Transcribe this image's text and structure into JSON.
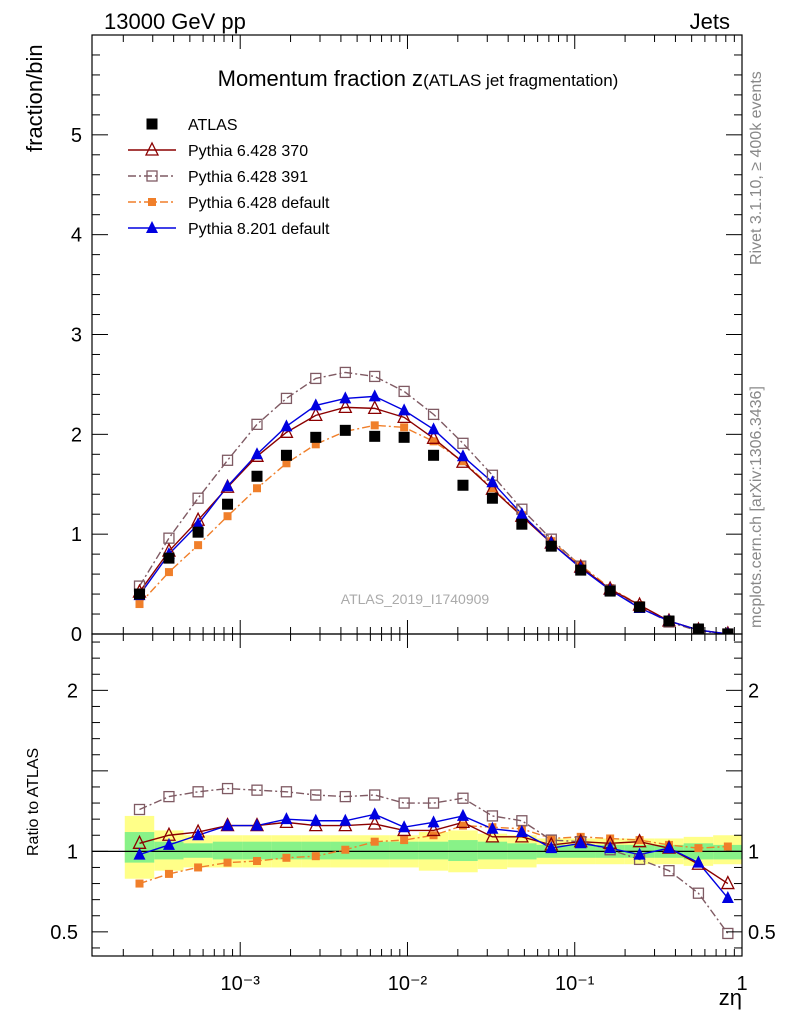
{
  "header": {
    "left": "13000 GeV pp",
    "right": "Jets"
  },
  "side_labels": {
    "rivet": "Rivet 3.1.10, ≥ 400k events",
    "mcplots": "mcplots.cern.ch [arXiv:1306.3436]"
  },
  "chart_data": {
    "type": "scatter",
    "title_main": "Momentum fraction z",
    "title_sub": "(ATLAS jet fragmentation)",
    "watermark": "ATLAS_2019_I1740909",
    "xlabel": "zη",
    "ylabel_top": "fraction/bin",
    "ylabel_bottom": "Ratio to ATLAS",
    "x_scale": "log",
    "xlim": [
      0.00013,
      1.0
    ],
    "x_tick_labels": [
      "10⁻³",
      "10⁻²",
      "10⁻¹",
      "1"
    ],
    "top": {
      "ylim": [
        0,
        6
      ],
      "y_ticks": [
        0,
        1,
        2,
        3,
        4,
        5
      ],
      "legend_position": "top-left"
    },
    "bottom": {
      "ylim": [
        0.35,
        2.35
      ],
      "y_ticks": [
        0.5,
        1,
        2
      ],
      "reference_line": 1.0
    },
    "x": [
      0.00025,
      0.000375,
      0.00056,
      0.00084,
      0.00126,
      0.00189,
      0.00283,
      0.00425,
      0.00637,
      0.00955,
      0.01432,
      0.02147,
      0.0322,
      0.04829,
      0.07241,
      0.1086,
      0.1628,
      0.2441,
      0.366,
      0.549,
      0.823
    ],
    "series": [
      {
        "name": "ATLAS",
        "color": "#000000",
        "marker": "square-filled",
        "line": "none",
        "values": [
          0.4,
          0.76,
          1.02,
          1.3,
          1.58,
          1.79,
          1.97,
          2.04,
          1.98,
          1.97,
          1.79,
          1.49,
          1.36,
          1.1,
          0.88,
          0.64,
          0.43,
          0.27,
          0.13,
          0.05,
          0.0
        ]
      },
      {
        "name": "Pythia 6.428 370",
        "color": "#8b0000",
        "marker": "triangle-open",
        "line": "solid",
        "values": [
          0.42,
          0.83,
          1.14,
          1.47,
          1.78,
          2.02,
          2.19,
          2.27,
          2.26,
          2.17,
          1.96,
          1.72,
          1.45,
          1.18,
          0.91,
          0.67,
          0.45,
          0.29,
          0.13,
          0.04,
          0.0
        ],
        "ratio": [
          1.05,
          1.1,
          1.12,
          1.16,
          1.16,
          1.18,
          1.16,
          1.16,
          1.17,
          1.13,
          1.13,
          1.18,
          1.09,
          1.09,
          1.04,
          1.06,
          1.05,
          1.06,
          1.02,
          0.92,
          0.8
        ]
      },
      {
        "name": "Pythia 6.428 391",
        "color": "#7f5a63",
        "marker": "square-open",
        "line": "dashdot",
        "values": [
          0.48,
          0.96,
          1.36,
          1.74,
          2.1,
          2.36,
          2.56,
          2.62,
          2.58,
          2.43,
          2.2,
          1.91,
          1.59,
          1.25,
          0.95,
          0.68,
          0.44,
          0.27,
          0.12,
          0.03,
          0.0
        ],
        "ratio": [
          1.26,
          1.34,
          1.37,
          1.39,
          1.38,
          1.37,
          1.35,
          1.34,
          1.35,
          1.3,
          1.3,
          1.33,
          1.22,
          1.19,
          1.07,
          1.06,
          1.01,
          0.95,
          0.88,
          0.74,
          0.49
        ]
      },
      {
        "name": "Pythia 6.428 default",
        "color": "#f07f2a",
        "marker": "square-filled",
        "line": "dashdot",
        "values": [
          0.3,
          0.62,
          0.89,
          1.18,
          1.46,
          1.71,
          1.9,
          2.03,
          2.09,
          2.07,
          1.93,
          1.73,
          1.46,
          1.19,
          0.93,
          0.69,
          0.46,
          0.29,
          0.13,
          0.04,
          0.0
        ],
        "ratio": [
          0.8,
          0.86,
          0.9,
          0.93,
          0.94,
          0.96,
          0.97,
          1.01,
          1.06,
          1.07,
          1.1,
          1.16,
          1.15,
          1.14,
          1.08,
          1.09,
          1.08,
          1.07,
          1.04,
          1.02,
          1.03
        ]
      },
      {
        "name": "Pythia 8.201 default",
        "color": "#0000e0",
        "marker": "triangle-filled",
        "line": "solid",
        "values": [
          0.39,
          0.8,
          1.1,
          1.48,
          1.8,
          2.08,
          2.29,
          2.36,
          2.38,
          2.24,
          2.05,
          1.78,
          1.52,
          1.2,
          0.91,
          0.66,
          0.44,
          0.26,
          0.13,
          0.04,
          0.0
        ],
        "ratio": [
          0.98,
          1.04,
          1.1,
          1.16,
          1.16,
          1.2,
          1.19,
          1.19,
          1.23,
          1.15,
          1.18,
          1.22,
          1.14,
          1.12,
          1.02,
          1.05,
          1.02,
          0.98,
          1.02,
          0.93,
          0.71
        ]
      }
    ],
    "bands": {
      "yellow": [
        [
          0.83,
          1.22
        ],
        [
          0.88,
          1.13
        ],
        [
          0.9,
          1.1
        ],
        [
          0.9,
          1.1
        ],
        [
          0.9,
          1.1
        ],
        [
          0.9,
          1.1
        ],
        [
          0.9,
          1.1
        ],
        [
          0.9,
          1.1
        ],
        [
          0.9,
          1.1
        ],
        [
          0.9,
          1.1
        ],
        [
          0.88,
          1.12
        ],
        [
          0.87,
          1.13
        ],
        [
          0.89,
          1.11
        ],
        [
          0.9,
          1.1
        ],
        [
          0.92,
          1.08
        ],
        [
          0.92,
          1.08
        ],
        [
          0.92,
          1.08
        ],
        [
          0.92,
          1.08
        ],
        [
          0.92,
          1.08
        ],
        [
          0.91,
          1.09
        ],
        [
          0.92,
          1.1
        ]
      ],
      "green": [
        [
          0.93,
          1.12
        ],
        [
          0.95,
          1.06
        ],
        [
          0.96,
          1.05
        ],
        [
          0.95,
          1.06
        ],
        [
          0.95,
          1.06
        ],
        [
          0.95,
          1.06
        ],
        [
          0.95,
          1.06
        ],
        [
          0.95,
          1.06
        ],
        [
          0.95,
          1.06
        ],
        [
          0.95,
          1.06
        ],
        [
          0.95,
          1.06
        ],
        [
          0.94,
          1.07
        ],
        [
          0.95,
          1.06
        ],
        [
          0.95,
          1.05
        ],
        [
          0.96,
          1.04
        ],
        [
          0.96,
          1.04
        ],
        [
          0.96,
          1.04
        ],
        [
          0.96,
          1.04
        ],
        [
          0.96,
          1.04
        ],
        [
          0.95,
          1.05
        ],
        [
          0.95,
          1.04
        ]
      ]
    },
    "band_colors": {
      "yellow": "#ffff88",
      "green": "#88f288"
    }
  }
}
